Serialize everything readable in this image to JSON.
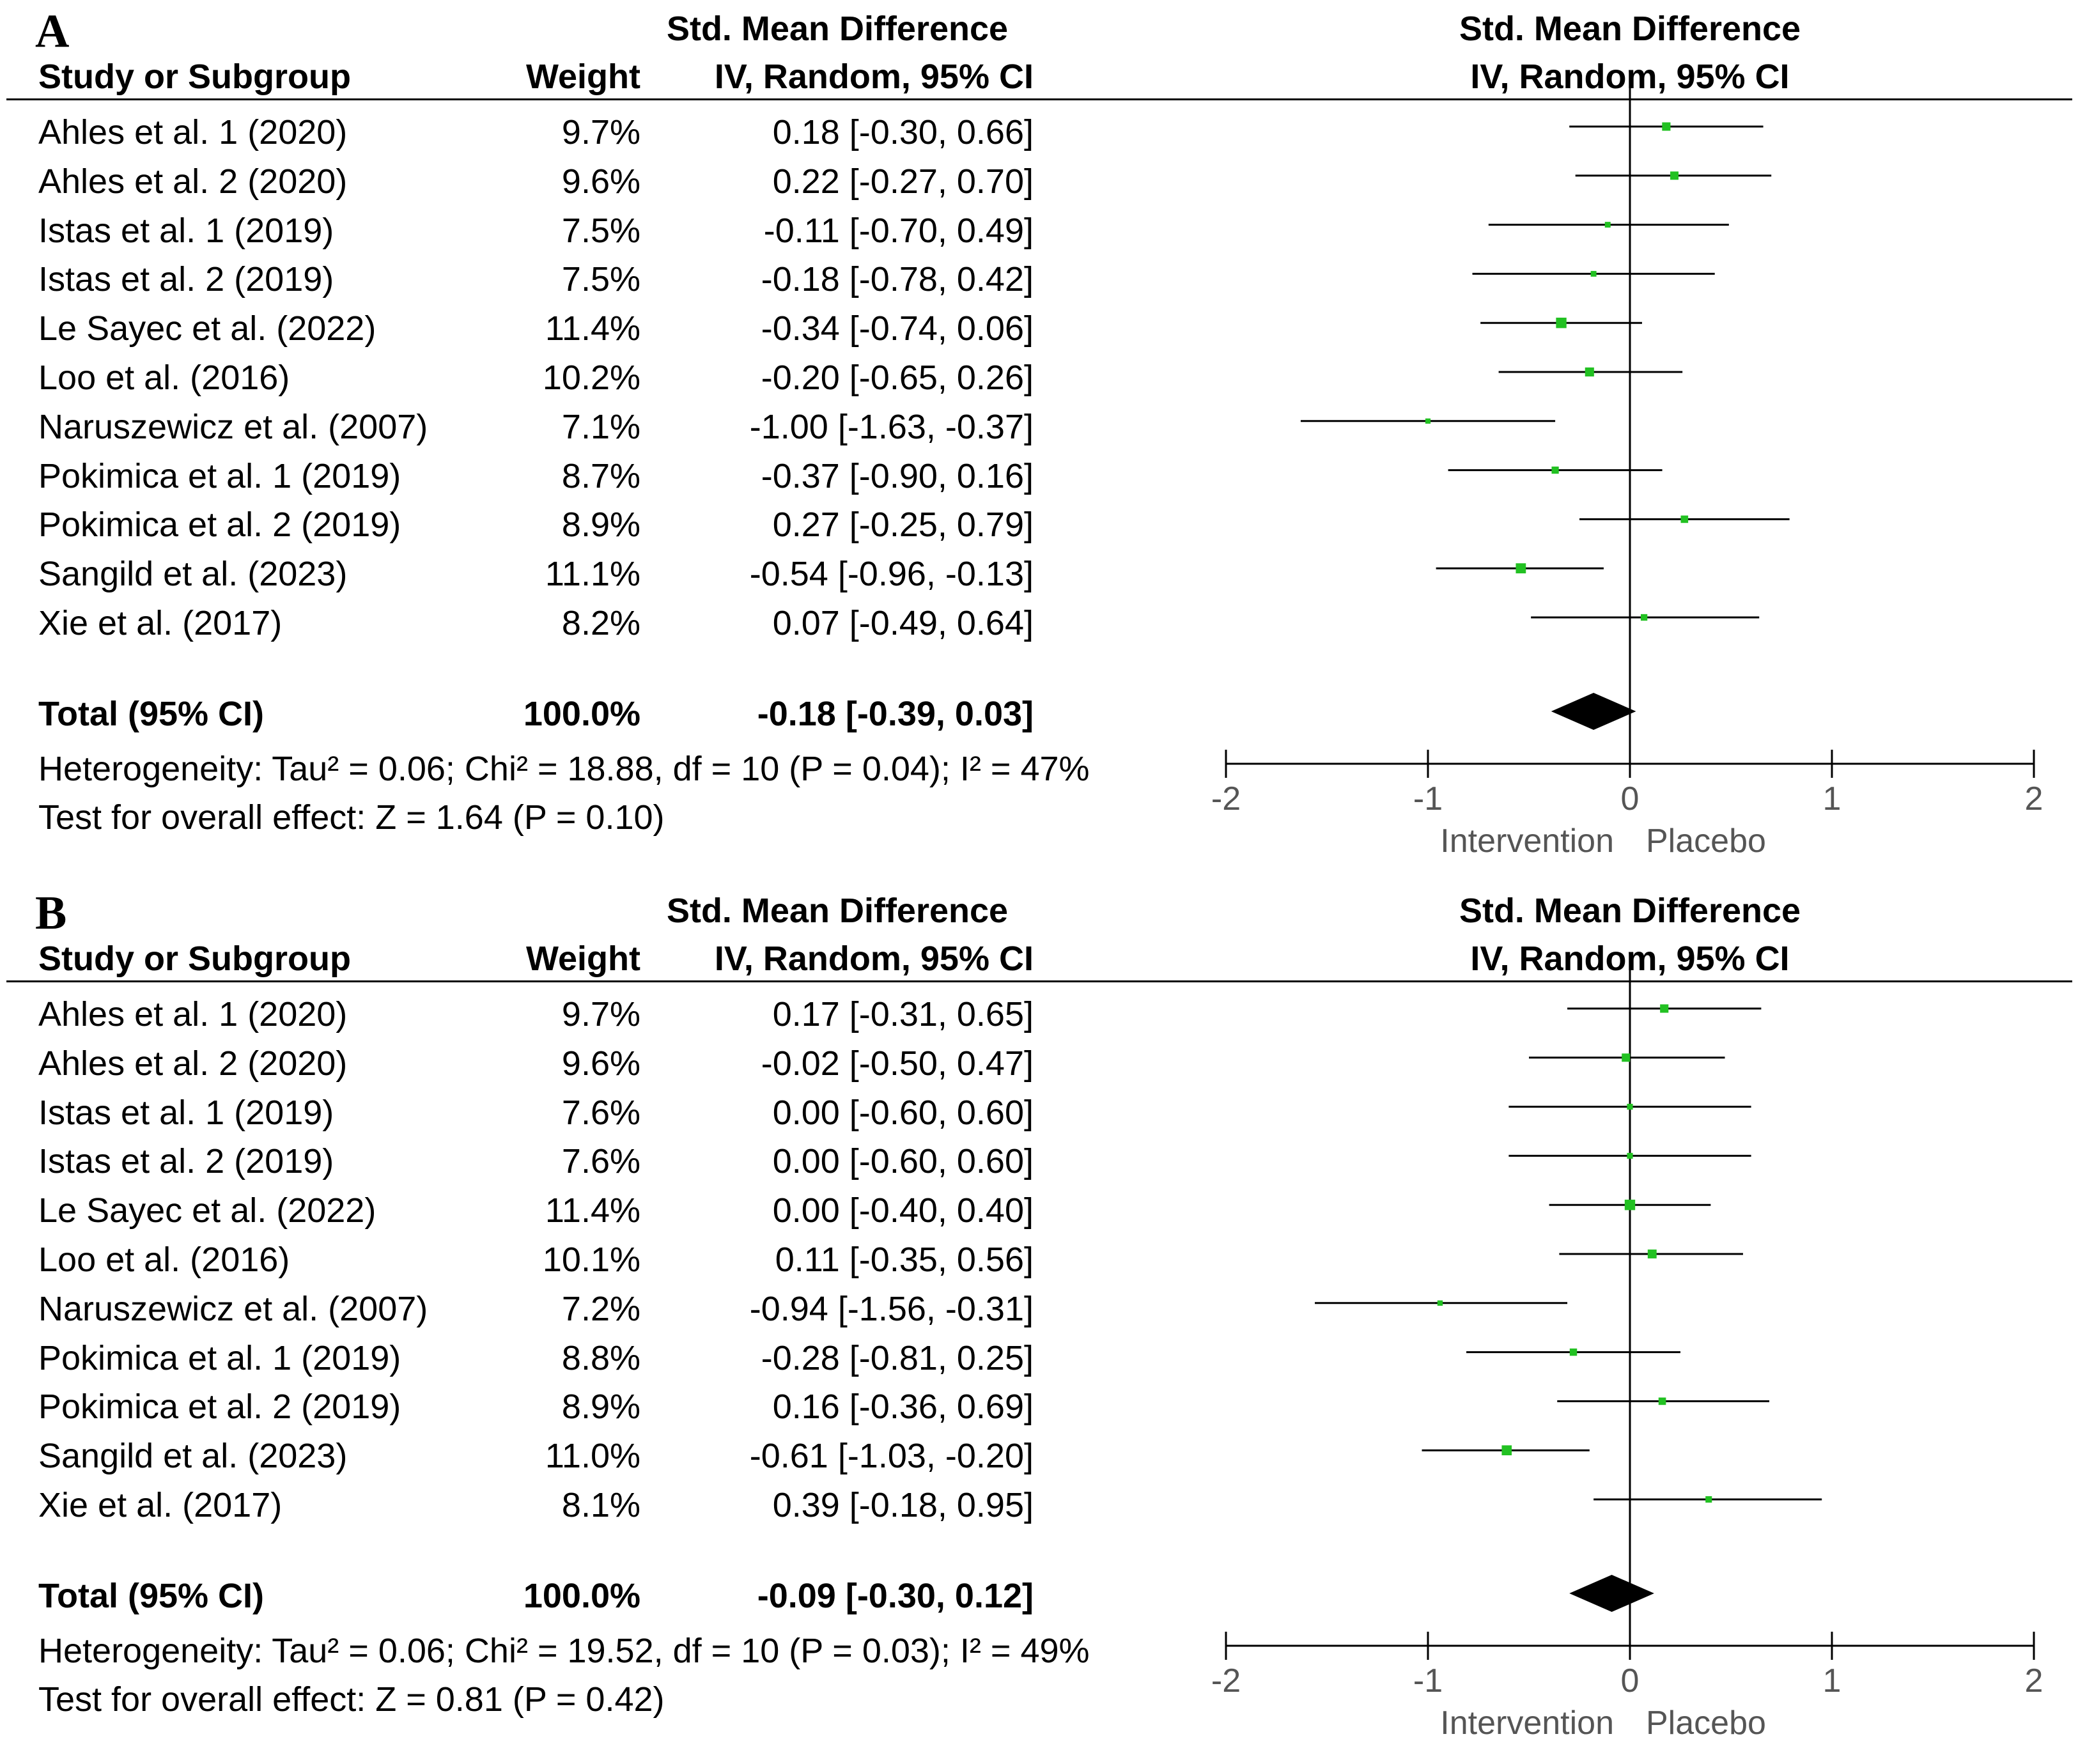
{
  "panels": [
    {
      "label": "A",
      "header": {
        "col3_line1": "Std. Mean Difference",
        "study": "Study or Subgroup",
        "weight": "Weight",
        "col3_line2": "IV, Random, 95% CI",
        "plot_line1": "Std. Mean Difference",
        "plot_line2": "IV, Random, 95% CI"
      },
      "rows": [
        {
          "study": "Ahles et al. 1 (2020)",
          "weight": "9.7%",
          "ci": "0.18 [-0.30, 0.66]"
        },
        {
          "study": "Ahles et al. 2 (2020)",
          "weight": "9.6%",
          "ci": "0.22 [-0.27, 0.70]"
        },
        {
          "study": "Istas et al. 1 (2019)",
          "weight": "7.5%",
          "ci": "-0.11 [-0.70, 0.49]"
        },
        {
          "study": "Istas et al. 2 (2019)",
          "weight": "7.5%",
          "ci": "-0.18 [-0.78, 0.42]"
        },
        {
          "study": "Le Sayec et al. (2022)",
          "weight": "11.4%",
          "ci": "-0.34 [-0.74, 0.06]"
        },
        {
          "study": "Loo et al. (2016)",
          "weight": "10.2%",
          "ci": "-0.20 [-0.65, 0.26]"
        },
        {
          "study": "Naruszewicz et al. (2007)",
          "weight": "7.1%",
          "ci": "-1.00 [-1.63, -0.37]"
        },
        {
          "study": "Pokimica et al. 1 (2019)",
          "weight": "8.7%",
          "ci": "-0.37 [-0.90, 0.16]"
        },
        {
          "study": "Pokimica et al. 2 (2019)",
          "weight": "8.9%",
          "ci": "0.27 [-0.25, 0.79]"
        },
        {
          "study": "Sangild et al. (2023)",
          "weight": "11.1%",
          "ci": "-0.54 [-0.96, -0.13]"
        },
        {
          "study": "Xie et al. (2017)",
          "weight": "8.2%",
          "ci": "0.07 [-0.49, 0.64]"
        }
      ],
      "total": {
        "label": "Total (95% CI)",
        "weight": "100.0%",
        "ci": "-0.18 [-0.39, 0.03]"
      },
      "heterogeneity": "Heterogeneity: Tau² = 0.06; Chi² = 18.88, df = 10 (P = 0.04); I² = 47%",
      "overall": "Test for overall effect: Z = 1.64 (P = 0.10)",
      "axis": {
        "ticks": [
          "-2",
          "-1",
          "0",
          "1",
          "2"
        ],
        "left_label": "Intervention",
        "right_label": "Placebo"
      }
    },
    {
      "label": "B",
      "header": {
        "col3_line1": "Std. Mean Difference",
        "study": "Study or Subgroup",
        "weight": "Weight",
        "col3_line2": "IV, Random, 95% CI",
        "plot_line1": "Std. Mean Difference",
        "plot_line2": "IV, Random, 95% CI"
      },
      "rows": [
        {
          "study": "Ahles et al. 1 (2020)",
          "weight": "9.7%",
          "ci": "0.17 [-0.31, 0.65]"
        },
        {
          "study": "Ahles et al. 2 (2020)",
          "weight": "9.6%",
          "ci": "-0.02 [-0.50, 0.47]"
        },
        {
          "study": "Istas et al. 1 (2019)",
          "weight": "7.6%",
          "ci": "0.00 [-0.60, 0.60]"
        },
        {
          "study": "Istas et al. 2 (2019)",
          "weight": "7.6%",
          "ci": "0.00 [-0.60, 0.60]"
        },
        {
          "study": "Le Sayec et al. (2022)",
          "weight": "11.4%",
          "ci": "0.00 [-0.40, 0.40]"
        },
        {
          "study": "Loo et al. (2016)",
          "weight": "10.1%",
          "ci": "0.11 [-0.35, 0.56]"
        },
        {
          "study": "Naruszewicz et al. (2007)",
          "weight": "7.2%",
          "ci": "-0.94 [-1.56, -0.31]"
        },
        {
          "study": "Pokimica et al. 1 (2019)",
          "weight": "8.8%",
          "ci": "-0.28 [-0.81, 0.25]"
        },
        {
          "study": "Pokimica et al. 2 (2019)",
          "weight": "8.9%",
          "ci": "0.16 [-0.36, 0.69]"
        },
        {
          "study": "Sangild et al. (2023)",
          "weight": "11.0%",
          "ci": "-0.61 [-1.03, -0.20]"
        },
        {
          "study": "Xie et al. (2017)",
          "weight": "8.1%",
          "ci": "0.39 [-0.18, 0.95]"
        }
      ],
      "total": {
        "label": "Total (95% CI)",
        "weight": "100.0%",
        "ci": "-0.09 [-0.30, 0.12]"
      },
      "heterogeneity": "Heterogeneity: Tau² = 0.06; Chi² = 19.52, df = 10 (P = 0.03); I² = 49%",
      "overall": "Test for overall effect: Z = 0.81 (P = 0.42)",
      "axis": {
        "ticks": [
          "-2",
          "-1",
          "0",
          "1",
          "2"
        ],
        "left_label": "Intervention",
        "right_label": "Placebo"
      }
    }
  ],
  "chart_data": [
    {
      "type": "forest",
      "title": "A",
      "xlim": [
        -2,
        2
      ],
      "ticks": [
        -2,
        -1,
        0,
        1,
        2
      ],
      "marker_color": "#22c122",
      "points": [
        {
          "study": "Ahles et al. 1 (2020)",
          "estimate": 0.18,
          "lower": -0.3,
          "upper": 0.66,
          "weight": 9.7
        },
        {
          "study": "Ahles et al. 2 (2020)",
          "estimate": 0.22,
          "lower": -0.27,
          "upper": 0.7,
          "weight": 9.6
        },
        {
          "study": "Istas et al. 1 (2019)",
          "estimate": -0.11,
          "lower": -0.7,
          "upper": 0.49,
          "weight": 7.5
        },
        {
          "study": "Istas et al. 2 (2019)",
          "estimate": -0.18,
          "lower": -0.78,
          "upper": 0.42,
          "weight": 7.5
        },
        {
          "study": "Le Sayec et al. (2022)",
          "estimate": -0.34,
          "lower": -0.74,
          "upper": 0.06,
          "weight": 11.4
        },
        {
          "study": "Loo et al. (2016)",
          "estimate": -0.2,
          "lower": -0.65,
          "upper": 0.26,
          "weight": 10.2
        },
        {
          "study": "Naruszewicz et al. (2007)",
          "estimate": -1.0,
          "lower": -1.63,
          "upper": -0.37,
          "weight": 7.1
        },
        {
          "study": "Pokimica et al. 1 (2019)",
          "estimate": -0.37,
          "lower": -0.9,
          "upper": 0.16,
          "weight": 8.7
        },
        {
          "study": "Pokimica et al. 2 (2019)",
          "estimate": 0.27,
          "lower": -0.25,
          "upper": 0.79,
          "weight": 8.9
        },
        {
          "study": "Sangild et al. (2023)",
          "estimate": -0.54,
          "lower": -0.96,
          "upper": -0.13,
          "weight": 11.1
        },
        {
          "study": "Xie et al. (2017)",
          "estimate": 0.07,
          "lower": -0.49,
          "upper": 0.64,
          "weight": 8.2
        }
      ],
      "total": {
        "estimate": -0.18,
        "lower": -0.39,
        "upper": 0.03
      },
      "xlabel_left": "Intervention",
      "xlabel_right": "Placebo"
    },
    {
      "type": "forest",
      "title": "B",
      "xlim": [
        -2,
        2
      ],
      "ticks": [
        -2,
        -1,
        0,
        1,
        2
      ],
      "marker_color": "#22c122",
      "points": [
        {
          "study": "Ahles et al. 1 (2020)",
          "estimate": 0.17,
          "lower": -0.31,
          "upper": 0.65,
          "weight": 9.7
        },
        {
          "study": "Ahles et al. 2 (2020)",
          "estimate": -0.02,
          "lower": -0.5,
          "upper": 0.47,
          "weight": 9.6
        },
        {
          "study": "Istas et al. 1 (2019)",
          "estimate": 0.0,
          "lower": -0.6,
          "upper": 0.6,
          "weight": 7.6
        },
        {
          "study": "Istas et al. 2 (2019)",
          "estimate": 0.0,
          "lower": -0.6,
          "upper": 0.6,
          "weight": 7.6
        },
        {
          "study": "Le Sayec et al. (2022)",
          "estimate": 0.0,
          "lower": -0.4,
          "upper": 0.4,
          "weight": 11.4
        },
        {
          "study": "Loo et al. (2016)",
          "estimate": 0.11,
          "lower": -0.35,
          "upper": 0.56,
          "weight": 10.1
        },
        {
          "study": "Naruszewicz et al. (2007)",
          "estimate": -0.94,
          "lower": -1.56,
          "upper": -0.31,
          "weight": 7.2
        },
        {
          "study": "Pokimica et al. 1 (2019)",
          "estimate": -0.28,
          "lower": -0.81,
          "upper": 0.25,
          "weight": 8.8
        },
        {
          "study": "Pokimica et al. 2 (2019)",
          "estimate": 0.16,
          "lower": -0.36,
          "upper": 0.69,
          "weight": 8.9
        },
        {
          "study": "Sangild et al. (2023)",
          "estimate": -0.61,
          "lower": -1.03,
          "upper": -0.2,
          "weight": 11.0
        },
        {
          "study": "Xie et al. (2017)",
          "estimate": 0.39,
          "lower": -0.18,
          "upper": 0.95,
          "weight": 8.1
        }
      ],
      "total": {
        "estimate": -0.09,
        "lower": -0.3,
        "upper": 0.12
      },
      "xlabel_left": "Intervention",
      "xlabel_right": "Placebo"
    }
  ]
}
